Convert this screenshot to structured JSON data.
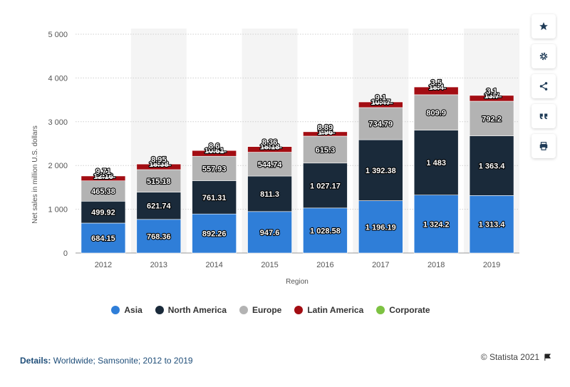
{
  "chart_data": {
    "type": "bar",
    "stacked": true,
    "categories": [
      "2012",
      "2013",
      "2014",
      "2015",
      "2016",
      "2017",
      "2018",
      "2019"
    ],
    "xlabel": "Region",
    "ylabel": "Net sales in million U.S. dollars",
    "ylim": [
      0,
      5000
    ],
    "yticks": [
      0,
      1000,
      2000,
      3000,
      4000,
      5000
    ],
    "ytick_labels": [
      "0",
      "1 000",
      "2 000",
      "3 000",
      "4 000",
      "5 000"
    ],
    "grid": true,
    "legend_position": "bottom",
    "series": [
      {
        "name": "Asia",
        "color": "#2f7ed8",
        "values": [
          684.15,
          768.36,
          892.26,
          947.6,
          1028.58,
          1196.19,
          1324.2,
          1313.4
        ],
        "labels": [
          "684.15",
          "768.36",
          "892.26",
          "947.6",
          "1 028.58",
          "1 196.19",
          "1 324.2",
          "1 313.4"
        ]
      },
      {
        "name": "North America",
        "color": "#1a2a3a",
        "values": [
          499.92,
          621.74,
          761.31,
          811.3,
          1027.17,
          1392.38,
          1483,
          1363.4
        ],
        "labels": [
          "499.92",
          "621.74",
          "761.31",
          "811.3",
          "1 027.17",
          "1 392.38",
          "1 483",
          "1 363.4"
        ]
      },
      {
        "name": "Europe",
        "color": "#b3b3b3",
        "values": [
          465.38,
          515.18,
          557.93,
          544.74,
          615.3,
          734.79,
          809.9,
          792.2
        ],
        "labels": [
          "465.38",
          "515.18",
          "557.93",
          "544.74",
          "615.3",
          "734.79",
          "809.9",
          "792.2"
        ]
      },
      {
        "name": "Latin America",
        "color": "#a30d13",
        "values": [
          112.16,
          128.38,
          130.61,
          128.18,
          100.96,
          130.47,
          178.4,
          133.7
        ],
        "labels": [
          "1̶̶2̶.̶1̶6̶",
          "1̶̶8̶.̶3̶8̶",
          "1̶̶0̶.̶6̶1̶",
          "1̶̶8̶.̶1̶8̶",
          "1̶̶̶.̶9̶6̶",
          "1̶̶0̶.̶4̶7̶",
          "1̶̶8̶.̶4̶",
          "1̶̶3̶.̶7̶"
        ]
      },
      {
        "name": "Corporate",
        "color": "#7dc242",
        "values": [
          9.71,
          8.95,
          8.6,
          8.36,
          8.89,
          9.1,
          3.5,
          3.1
        ],
        "labels": [
          "9.71",
          "8.95",
          "8.6",
          "8.36",
          "8.89",
          "9.1",
          "3.5",
          "3.1"
        ]
      }
    ]
  },
  "legend": [
    "Asia",
    "North America",
    "Europe",
    "Latin America",
    "Corporate"
  ],
  "footer": {
    "details_label": "Details:",
    "details_text": "Worldwide; Samsonite; 2012 to 2019",
    "credit": "© Statista 2021"
  },
  "sidebar": {
    "icons": [
      "star-icon",
      "gear-icon",
      "share-icon",
      "quote-icon",
      "print-icon"
    ]
  }
}
